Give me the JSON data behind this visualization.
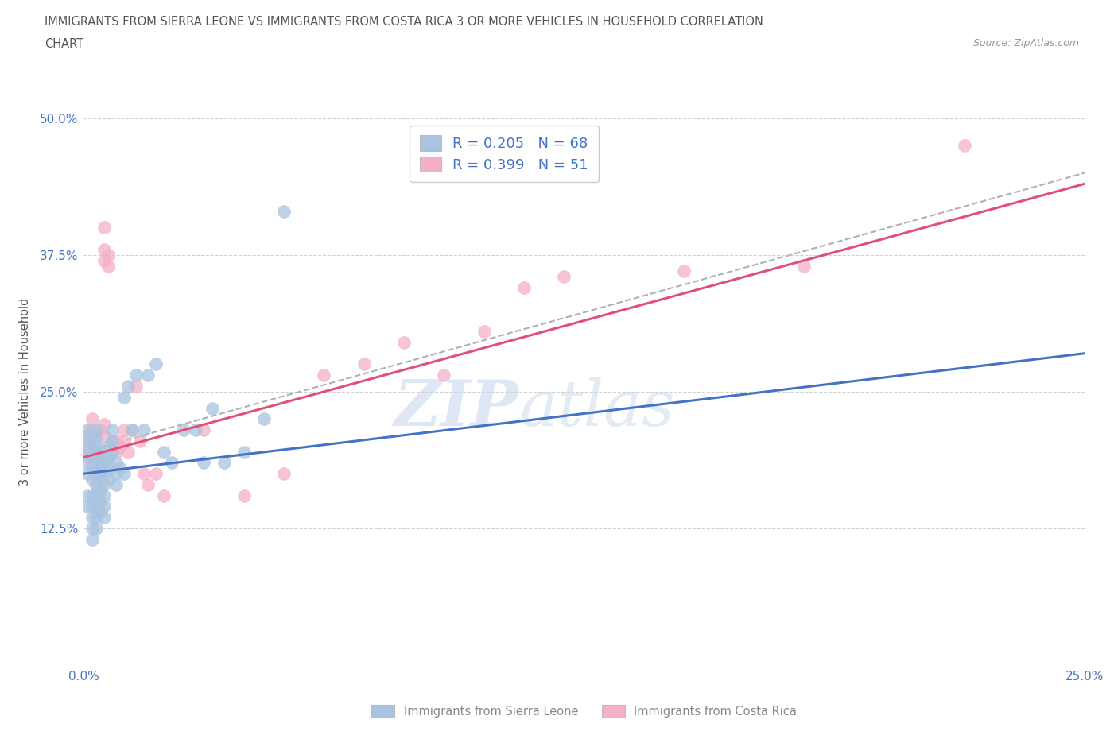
{
  "title_line1": "IMMIGRANTS FROM SIERRA LEONE VS IMMIGRANTS FROM COSTA RICA 3 OR MORE VEHICLES IN HOUSEHOLD CORRELATION",
  "title_line2": "CHART",
  "source_text": "Source: ZipAtlas.com",
  "ylabel": "3 or more Vehicles in Household",
  "xlim": [
    0.0,
    0.25
  ],
  "ylim": [
    0.0,
    0.5
  ],
  "xticks": [
    0.0,
    0.05,
    0.1,
    0.15,
    0.2,
    0.25
  ],
  "yticks": [
    0.0,
    0.125,
    0.25,
    0.375,
    0.5
  ],
  "xtick_labels": [
    "0.0%",
    "",
    "",
    "",
    "",
    "25.0%"
  ],
  "ytick_labels": [
    "",
    "12.5%",
    "25.0%",
    "37.5%",
    "50.0%"
  ],
  "sierra_leone_R": 0.205,
  "sierra_leone_N": 68,
  "costa_rica_R": 0.399,
  "costa_rica_N": 51,
  "sierra_leone_color": "#a8c4e0",
  "costa_rica_color": "#f4b0c8",
  "sierra_leone_line_color": "#4472c4",
  "costa_rica_line_color": "#e0507a",
  "trend_line_color": "#b0b0b0",
  "legend_label_sierra": "Immigrants from Sierra Leone",
  "legend_label_costa": "Immigrants from Costa Rica",
  "sl_line_x0": 0.0,
  "sl_line_y0": 0.175,
  "sl_line_x1": 0.25,
  "sl_line_y1": 0.285,
  "cr_line_x0": 0.0,
  "cr_line_y0": 0.19,
  "cr_line_x1": 0.25,
  "cr_line_y1": 0.44,
  "dash_line_x0": 0.0,
  "dash_line_y0": 0.195,
  "dash_line_x1": 0.25,
  "dash_line_y1": 0.45,
  "sierra_leone_x": [
    0.001,
    0.001,
    0.001,
    0.001,
    0.001,
    0.001,
    0.001,
    0.002,
    0.002,
    0.002,
    0.002,
    0.002,
    0.002,
    0.002,
    0.002,
    0.002,
    0.002,
    0.003,
    0.003,
    0.003,
    0.003,
    0.003,
    0.003,
    0.003,
    0.003,
    0.003,
    0.003,
    0.004,
    0.004,
    0.004,
    0.004,
    0.004,
    0.004,
    0.005,
    0.005,
    0.005,
    0.005,
    0.005,
    0.005,
    0.006,
    0.006,
    0.006,
    0.006,
    0.007,
    0.007,
    0.007,
    0.008,
    0.008,
    0.008,
    0.009,
    0.01,
    0.01,
    0.011,
    0.012,
    0.013,
    0.015,
    0.016,
    0.018,
    0.02,
    0.022,
    0.025,
    0.028,
    0.03,
    0.032,
    0.035,
    0.04,
    0.045,
    0.05
  ],
  "sierra_leone_y": [
    0.175,
    0.185,
    0.195,
    0.205,
    0.215,
    0.155,
    0.145,
    0.17,
    0.18,
    0.19,
    0.2,
    0.21,
    0.155,
    0.145,
    0.135,
    0.125,
    0.115,
    0.165,
    0.175,
    0.185,
    0.195,
    0.205,
    0.215,
    0.155,
    0.145,
    0.135,
    0.125,
    0.16,
    0.175,
    0.185,
    0.195,
    0.15,
    0.14,
    0.165,
    0.175,
    0.185,
    0.155,
    0.145,
    0.135,
    0.2,
    0.19,
    0.18,
    0.17,
    0.215,
    0.205,
    0.195,
    0.185,
    0.175,
    0.165,
    0.18,
    0.245,
    0.175,
    0.255,
    0.215,
    0.265,
    0.215,
    0.265,
    0.275,
    0.195,
    0.185,
    0.215,
    0.215,
    0.185,
    0.235,
    0.185,
    0.195,
    0.225,
    0.415
  ],
  "costa_rica_x": [
    0.001,
    0.001,
    0.001,
    0.002,
    0.002,
    0.002,
    0.002,
    0.003,
    0.003,
    0.003,
    0.003,
    0.003,
    0.004,
    0.004,
    0.004,
    0.005,
    0.005,
    0.005,
    0.005,
    0.005,
    0.006,
    0.006,
    0.006,
    0.007,
    0.007,
    0.008,
    0.008,
    0.009,
    0.01,
    0.01,
    0.011,
    0.012,
    0.013,
    0.014,
    0.015,
    0.016,
    0.018,
    0.02,
    0.03,
    0.04,
    0.05,
    0.06,
    0.07,
    0.08,
    0.09,
    0.1,
    0.11,
    0.12,
    0.15,
    0.18,
    0.22
  ],
  "costa_rica_y": [
    0.19,
    0.2,
    0.21,
    0.185,
    0.195,
    0.215,
    0.225,
    0.19,
    0.2,
    0.21,
    0.175,
    0.165,
    0.18,
    0.19,
    0.215,
    0.37,
    0.38,
    0.4,
    0.21,
    0.22,
    0.365,
    0.375,
    0.185,
    0.195,
    0.205,
    0.195,
    0.205,
    0.2,
    0.215,
    0.205,
    0.195,
    0.215,
    0.255,
    0.205,
    0.175,
    0.165,
    0.175,
    0.155,
    0.215,
    0.155,
    0.175,
    0.265,
    0.275,
    0.295,
    0.265,
    0.305,
    0.345,
    0.355,
    0.36,
    0.365,
    0.475
  ],
  "watermark_top": "ZIP",
  "watermark_bottom": "atlas",
  "background_color": "#ffffff",
  "grid_color": "#cccccc",
  "title_color": "#555555",
  "axis_label_color": "#555555",
  "tick_color_x": "#4472c4",
  "tick_color_y": "#4472c4"
}
